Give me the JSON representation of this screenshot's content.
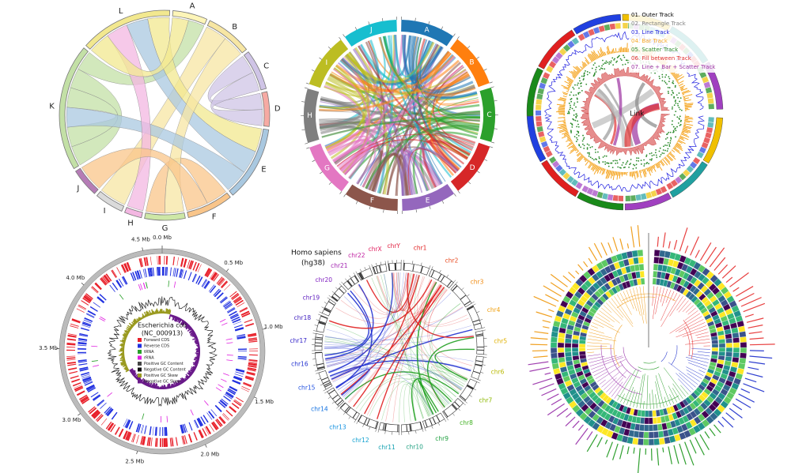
{
  "chord_diagram": {
    "sectors": [
      {
        "label": "A",
        "color": "#fdf5b8"
      },
      {
        "label": "B",
        "color": "#f7e6a3"
      },
      {
        "label": "C",
        "color": "#cfc4e6"
      },
      {
        "label": "D",
        "color": "#f6aaa3"
      },
      {
        "label": "E",
        "color": "#a9c8e0"
      },
      {
        "label": "F",
        "color": "#f9c58a"
      },
      {
        "label": "G",
        "color": "#cde7a6"
      },
      {
        "label": "H",
        "color": "#f3b7e2"
      },
      {
        "label": "I",
        "color": "#dadada"
      },
      {
        "label": "J",
        "color": "#b57cb6"
      },
      {
        "label": "K",
        "color": "#c3e0a6"
      },
      {
        "label": "L",
        "color": "#f2e88f"
      }
    ]
  },
  "colored_chord_diagram": {
    "sectors": [
      {
        "label": "A",
        "color": "#1f77b4"
      },
      {
        "label": "B",
        "color": "#ff7f0e"
      },
      {
        "label": "C",
        "color": "#2ca02c"
      },
      {
        "label": "D",
        "color": "#d62728"
      },
      {
        "label": "E",
        "color": "#9467bd"
      },
      {
        "label": "F",
        "color": "#8c564b"
      },
      {
        "label": "G",
        "color": "#e377c2"
      },
      {
        "label": "H",
        "color": "#7f7f7f"
      },
      {
        "label": "I",
        "color": "#bcbd22"
      },
      {
        "label": "J",
        "color": "#17becf"
      }
    ]
  },
  "track_demo": {
    "legend": [
      {
        "label": "01. Outer Track",
        "color": "#000000"
      },
      {
        "label": "02. Rectangle Track",
        "color": "#808080"
      },
      {
        "label": "03. Line Track",
        "color": "#1f1fdd"
      },
      {
        "label": "04. Bar Track",
        "color": "#f5a623"
      },
      {
        "label": "05. Scatter Track",
        "color": "#2a8a2a"
      },
      {
        "label": "06. Fill between Track",
        "color": "#e03030"
      },
      {
        "label": "07. Line + Bar + Scatter Track",
        "color": "#9b30a0"
      }
    ],
    "link_label": "Link"
  },
  "genome_plot": {
    "title": "Escherichia coli",
    "subtitle": "(NC_000913)",
    "legend": [
      {
        "label": "Forward CDS",
        "color": "#e8202a"
      },
      {
        "label": "Reverse CDS",
        "color": "#2030e0"
      },
      {
        "label": "tRNA",
        "color": "#2aa02a"
      },
      {
        "label": "rRNA",
        "color": "#e020e0"
      },
      {
        "label": "Positive GC Content",
        "color": "#444444"
      },
      {
        "label": "Negative GC Content",
        "color": "#111111"
      },
      {
        "label": "Positive GC Skew",
        "color": "#9a9a20"
      },
      {
        "label": "Negative GC Skew",
        "color": "#6a1a8a"
      }
    ],
    "ticks": [
      "0.0 Mb",
      "0.5 Mb",
      "1.0 Mb",
      "1.5 Mb",
      "2.0 Mb",
      "2.5 Mb",
      "3.0 Mb",
      "3.5 Mb",
      "4.0 Mb",
      "4.5 Mb"
    ]
  },
  "human_genome": {
    "title": "Homo sapiens",
    "subtitle": "(hg38)",
    "chromosomes": [
      {
        "label": "chr1",
        "color": "#e02020"
      },
      {
        "label": "chr2",
        "color": "#e84a20"
      },
      {
        "label": "chr3",
        "color": "#f08a10"
      },
      {
        "label": "chr4",
        "color": "#f0a010"
      },
      {
        "label": "chr5",
        "color": "#e0b000"
      },
      {
        "label": "chr6",
        "color": "#b8b800"
      },
      {
        "label": "chr7",
        "color": "#8cb800"
      },
      {
        "label": "chr8",
        "color": "#40b020"
      },
      {
        "label": "chr9",
        "color": "#20a040"
      },
      {
        "label": "chr10",
        "color": "#20a080"
      },
      {
        "label": "chr11",
        "color": "#10a0b0"
      },
      {
        "label": "chr12",
        "color": "#10a0d0"
      },
      {
        "label": "chr13",
        "color": "#1090e0"
      },
      {
        "label": "chr14",
        "color": "#1070e0"
      },
      {
        "label": "chr15",
        "color": "#2050e0"
      },
      {
        "label": "chr16",
        "color": "#2030d0"
      },
      {
        "label": "chr17",
        "color": "#3020c8"
      },
      {
        "label": "chr18",
        "color": "#4020c0"
      },
      {
        "label": "chr19",
        "color": "#6020c0"
      },
      {
        "label": "chr20",
        "color": "#8020c0"
      },
      {
        "label": "chr21",
        "color": "#a020b0"
      },
      {
        "label": "chr22",
        "color": "#c020a0"
      },
      {
        "label": "chrX",
        "color": "#e02060"
      },
      {
        "label": "chrY",
        "color": "#e02040"
      }
    ]
  }
}
